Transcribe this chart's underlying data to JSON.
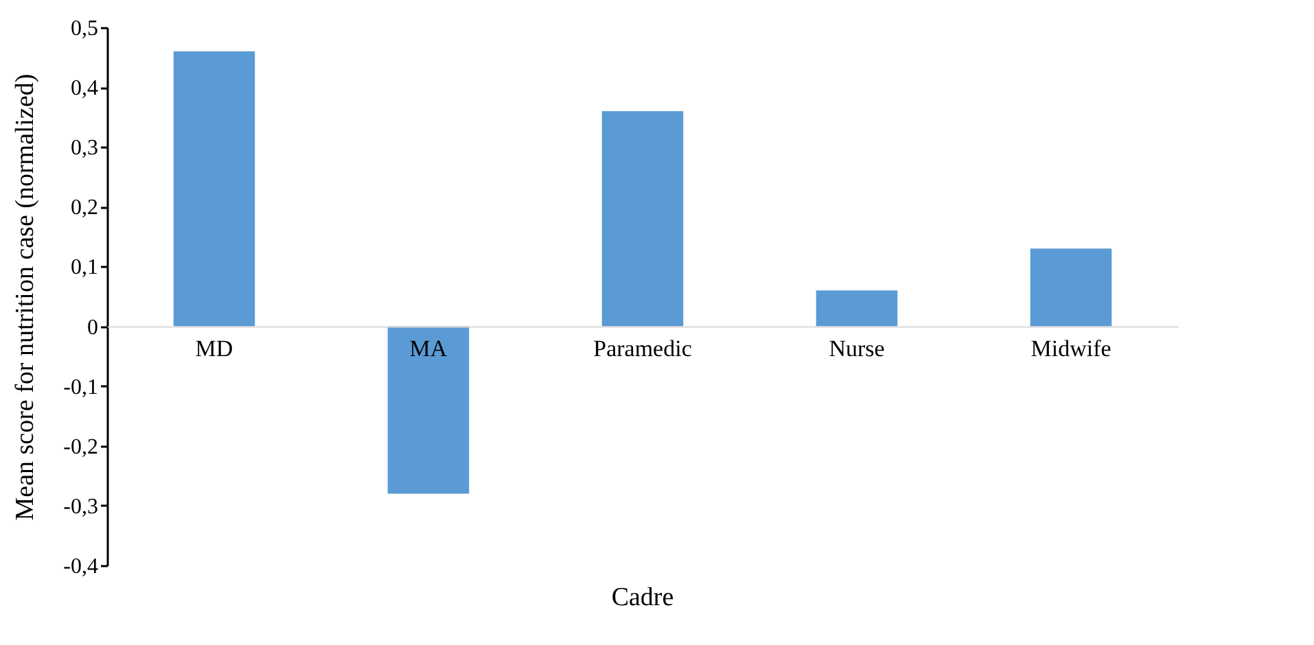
{
  "chart_data": {
    "type": "bar",
    "xlabel": "Cadre",
    "ylabel": "Mean score for nutrition case (normalized)",
    "categories": [
      "MD",
      "MA",
      "Paramedic",
      "Nurse",
      "Midwife"
    ],
    "values": [
      0.46,
      -0.28,
      0.36,
      0.06,
      0.13
    ],
    "color": "#5b9bd5",
    "ylim": [
      -0.4,
      0.5
    ],
    "yticks": [
      {
        "value": -0.4,
        "label": "-0,4"
      },
      {
        "value": -0.3,
        "label": "-0,3"
      },
      {
        "value": -0.2,
        "label": "-0,2"
      },
      {
        "value": -0.1,
        "label": "-0,1"
      },
      0,
      {
        "value": 0.1,
        "label": "0,1"
      },
      {
        "value": 0.2,
        "label": "0,2"
      },
      {
        "value": 0.3,
        "label": "0,3"
      },
      {
        "value": 0.4,
        "label": "0,4"
      },
      {
        "value": 0.5,
        "label": "0,5"
      }
    ],
    "grid": false
  }
}
